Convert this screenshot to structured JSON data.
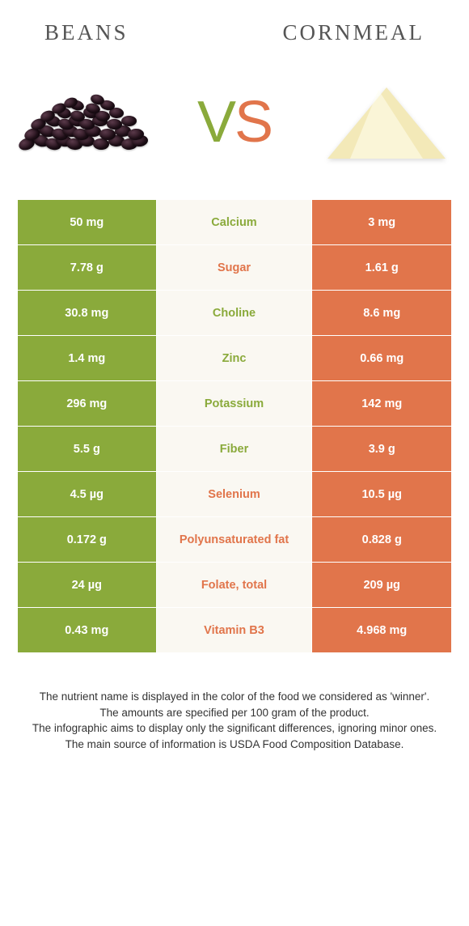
{
  "leftFood": "BEANS",
  "rightFood": "CORNMEAL",
  "vs": {
    "v": "V",
    "s": "S"
  },
  "colors": {
    "green": "#8aaa3b",
    "orange": "#e1754b",
    "midBg": "#faf8f2",
    "titleGray": "#555555"
  },
  "rows": [
    {
      "left": "50 mg",
      "label": "Calcium",
      "right": "3 mg",
      "winner": "left"
    },
    {
      "left": "7.78 g",
      "label": "Sugar",
      "right": "1.61 g",
      "winner": "right"
    },
    {
      "left": "30.8 mg",
      "label": "Choline",
      "right": "8.6 mg",
      "winner": "left"
    },
    {
      "left": "1.4 mg",
      "label": "Zinc",
      "right": "0.66 mg",
      "winner": "left"
    },
    {
      "left": "296 mg",
      "label": "Potassium",
      "right": "142 mg",
      "winner": "left"
    },
    {
      "left": "5.5 g",
      "label": "Fiber",
      "right": "3.9 g",
      "winner": "left"
    },
    {
      "left": "4.5 µg",
      "label": "Selenium",
      "right": "10.5 µg",
      "winner": "right"
    },
    {
      "left": "0.172 g",
      "label": "Polyunsaturated fat",
      "right": "0.828 g",
      "winner": "right"
    },
    {
      "left": "24 µg",
      "label": "Folate, total",
      "right": "209 µg",
      "winner": "right"
    },
    {
      "left": "0.43 mg",
      "label": "Vitamin B3",
      "right": "4.968 mg",
      "winner": "right"
    }
  ],
  "footer": {
    "l1": "The nutrient name is displayed in the color of the food we considered as 'winner'.",
    "l2": "The amounts are specified per 100 gram of the product.",
    "l3": "The infographic aims to display only the significant differences, ignoring minor ones.",
    "l4": "The main source of information is USDA Food Composition Database."
  }
}
